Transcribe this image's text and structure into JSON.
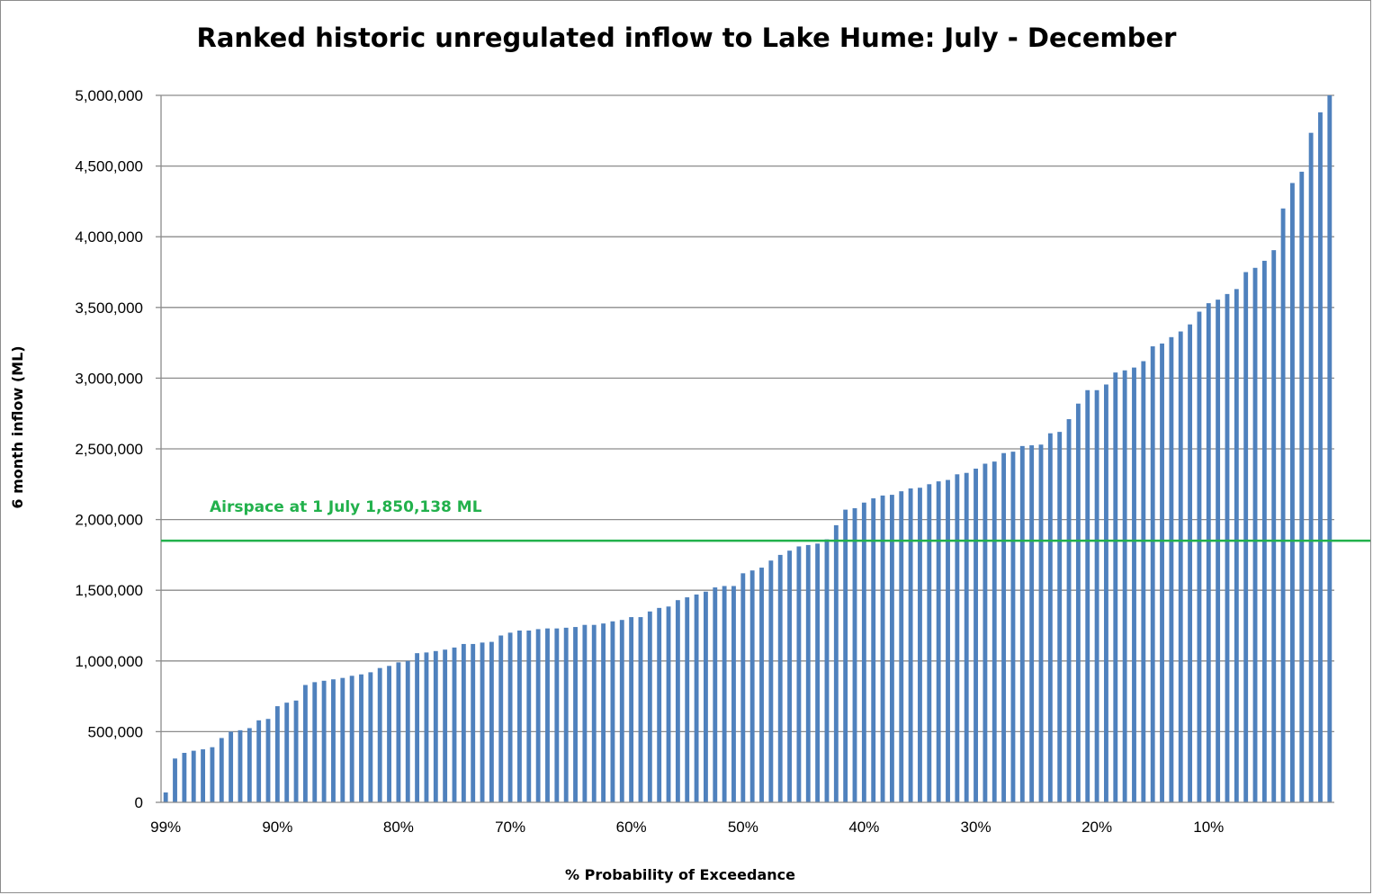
{
  "chart_data": {
    "type": "bar",
    "title": "Ranked historic unregulated inflow to Lake Hume: July - December",
    "xlabel": "% Probability of Exceedance",
    "ylabel": "6 month inflow (ML)",
    "ylim": [
      0,
      5000000
    ],
    "grid": true,
    "legend": "none",
    "bar_color": "#4f81bd",
    "y_ticks": [
      "0",
      "500,000",
      "1,000,000",
      "1,500,000",
      "2,000,000",
      "2,500,000",
      "3,000,000",
      "3,500,000",
      "4,000,000",
      "4,500,000",
      "5,000,000"
    ],
    "x_ticks": [
      {
        "label": "99%",
        "bar_index": 0
      },
      {
        "label": "90%",
        "bar_index": 12
      },
      {
        "label": "80%",
        "bar_index": 25
      },
      {
        "label": "70%",
        "bar_index": 37
      },
      {
        "label": "60%",
        "bar_index": 50
      },
      {
        "label": "50%",
        "bar_index": 62
      },
      {
        "label": "40%",
        "bar_index": 75
      },
      {
        "label": "30%",
        "bar_index": 87
      },
      {
        "label": "20%",
        "bar_index": 100
      },
      {
        "label": "10%",
        "bar_index": 112
      }
    ],
    "values": [
      70000,
      310000,
      350000,
      365000,
      375000,
      390000,
      455000,
      500000,
      510000,
      525000,
      580000,
      590000,
      680000,
      705000,
      720000,
      830000,
      850000,
      860000,
      870000,
      880000,
      895000,
      905000,
      920000,
      950000,
      965000,
      990000,
      1000000,
      1055000,
      1060000,
      1070000,
      1080000,
      1095000,
      1120000,
      1120000,
      1130000,
      1135000,
      1180000,
      1200000,
      1215000,
      1215000,
      1225000,
      1230000,
      1230000,
      1235000,
      1240000,
      1255000,
      1255000,
      1265000,
      1280000,
      1290000,
      1310000,
      1310000,
      1350000,
      1375000,
      1385000,
      1430000,
      1450000,
      1470000,
      1490000,
      1520000,
      1530000,
      1530000,
      1620000,
      1640000,
      1660000,
      1710000,
      1750000,
      1780000,
      1810000,
      1820000,
      1830000,
      1860000,
      1960000,
      2070000,
      2080000,
      2120000,
      2150000,
      2170000,
      2175000,
      2200000,
      2220000,
      2225000,
      2250000,
      2270000,
      2280000,
      2320000,
      2330000,
      2360000,
      2395000,
      2410000,
      2470000,
      2480000,
      2520000,
      2525000,
      2530000,
      2610000,
      2620000,
      2710000,
      2820000,
      2915000,
      2915000,
      2955000,
      3040000,
      3055000,
      3075000,
      3120000,
      3225000,
      3245000,
      3290000,
      3330000,
      3380000,
      3470000,
      3530000,
      3555000,
      3595000,
      3630000,
      3750000,
      3780000,
      3830000,
      3905000,
      4200000,
      4380000,
      4460000,
      4735000,
      4880000,
      5000000
    ],
    "reference_line": {
      "value": 1850138,
      "label": "Airspace at 1 July 1,850,138 ML",
      "color": "#22b14c"
    }
  }
}
